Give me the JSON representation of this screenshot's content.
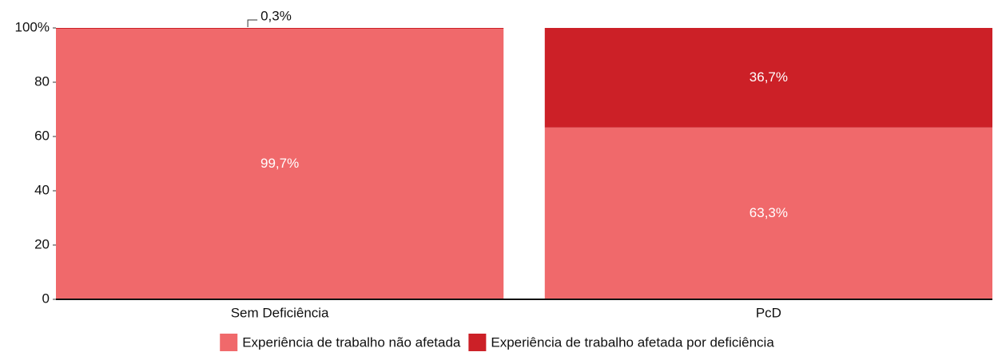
{
  "chart_data": {
    "type": "stacked_bar",
    "categories": [
      "Sem Deficiência",
      "PcD"
    ],
    "series": [
      {
        "name": "Experiência de trabalho não afetada",
        "color": "#f0696b",
        "values": [
          99.7,
          63.3
        ],
        "value_labels": [
          "99,7%",
          "63,3%"
        ]
      },
      {
        "name": "Experiência de trabalho afetada por deficiência",
        "color": "#cc2027",
        "values": [
          0.3,
          36.7
        ],
        "value_labels": [
          "0,3%",
          "36,7%"
        ]
      }
    ],
    "ylim": [
      0,
      100
    ],
    "yticks": [
      0,
      20,
      40,
      60,
      80,
      {
        "value": 100,
        "label": "100%"
      }
    ],
    "legend": "bottom"
  }
}
